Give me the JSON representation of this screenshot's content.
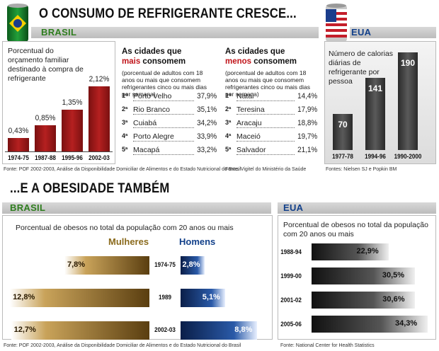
{
  "top": {
    "headline": "O CONSUMO DE REFRIGERANTE CRESCE...",
    "brasil_label": "BRASIL",
    "eua_label": "EUA",
    "brasil_chart": {
      "desc": "Porcentual do orçamento familiar destinado à compra de refrigerante",
      "categories": [
        "1974-75",
        "1987-88",
        "1995-96",
        "2002-03"
      ],
      "values": [
        0.43,
        0.85,
        1.35,
        2.12
      ],
      "labels": [
        "0,43%",
        "0,85%",
        "1,35%",
        "2,12%"
      ],
      "color": "#9c1818"
    },
    "more_cities": {
      "title_line1": "As cidades que",
      "title_em": "mais",
      "title_rest": "consomem",
      "sub": "(porcentual de adultos com 18 anos ou mais que consomem refrigerantes cinco ou mais dias por semana)",
      "rows": [
        {
          "rank": "1ª",
          "city": "Porto Velho",
          "value": "37,9%"
        },
        {
          "rank": "2ª",
          "city": "Rio Branco",
          "value": "35,1%"
        },
        {
          "rank": "3ª",
          "city": "Cuiabá",
          "value": "34,2%"
        },
        {
          "rank": "4ª",
          "city": "Porto Alegre",
          "value": "33,9%"
        },
        {
          "rank": "5ª",
          "city": "Macapá",
          "value": "33,2%"
        }
      ]
    },
    "less_cities": {
      "title_line1": "As cidades que",
      "title_em": "menos",
      "title_rest": "consomem",
      "sub": "(porcentual de adultos com 18 anos ou mais que consomem refrigerantes cinco ou mais dias por semana)",
      "rows": [
        {
          "rank": "1ª",
          "city": "Natal",
          "value": "14,4%"
        },
        {
          "rank": "2ª",
          "city": "Teresina",
          "value": "17,9%"
        },
        {
          "rank": "3ª",
          "city": "Aracaju",
          "value": "18,8%"
        },
        {
          "rank": "4ª",
          "city": "Maceió",
          "value": "19,7%"
        },
        {
          "rank": "5ª",
          "city": "Salvador",
          "value": "21,1%"
        }
      ]
    },
    "eua_chart": {
      "desc": "Número de calorias diárias de refrigerante por pessoa",
      "categories": [
        "1977-78",
        "1994-96",
        "1990-2000"
      ],
      "values": [
        70,
        141,
        190
      ],
      "labels": [
        "70",
        "141",
        "190"
      ]
    },
    "source_brasil": "Fonte: POF 2002-2003, Análise da Disponibilidade Domiciliar de Alimentos e do Estado Nutricional do Brasil",
    "source_vigitel": "Fonte: Vigitel do Ministério da Saúde",
    "source_eua": "Fontes: Nielsen SJ e Popkin BM"
  },
  "bottom": {
    "headline": "...E A OBESIDADE TAMBÉM",
    "brasil_label": "BRASIL",
    "eua_label": "EUA",
    "brasil_chart": {
      "desc": "Porcentual de obesos no total da população com 20 anos ou mais",
      "women_label": "Mulheres",
      "men_label": "Homens",
      "categories": [
        "1974-75",
        "1989",
        "2002-03"
      ],
      "women": [
        7.8,
        12.8,
        12.7
      ],
      "men": [
        2.8,
        5.1,
        8.8
      ],
      "women_labels": [
        "7,8%",
        "12,8%",
        "12,7%"
      ],
      "men_labels": [
        "2,8%",
        "5,1%",
        "8,8%"
      ]
    },
    "eua_chart": {
      "desc": "Porcentual de obesos no total da população com 20 anos ou mais",
      "categories": [
        "1988-94",
        "1999-00",
        "2001-02",
        "2005-06"
      ],
      "values": [
        22.9,
        30.5,
        30.6,
        34.3
      ],
      "labels": [
        "22,9%",
        "30,5%",
        "30,6%",
        "34,3%"
      ]
    },
    "source_brasil": "Fonte: POF 2002-2003, Análise da Disponibilidade Domiciliar de Alimentos e do Estado Nutricional do Brasil",
    "source_eua": "Fonte: National Center for Health Statistics"
  },
  "chart_data": [
    {
      "type": "bar",
      "title": "",
      "categories": [
        "1974-75",
        "1987-88",
        "1995-96",
        "2002-03"
      ],
      "values": [
        0.43,
        0.85,
        1.35,
        2.12
      ],
      "ylabel": "Porcentual do orçamento familiar destinado à compra de refrigerante"
    },
    {
      "type": "bar",
      "categories": [
        "1977-78",
        "1994-96",
        "1990-2000"
      ],
      "values": [
        70,
        141,
        190
      ],
      "ylabel": "Número de calorias diárias de refrigerante por pessoa"
    },
    {
      "type": "bar",
      "categories": [
        "1974-75",
        "1989",
        "2002-03"
      ],
      "series": [
        {
          "name": "Mulheres",
          "values": [
            7.8,
            12.8,
            12.7
          ]
        },
        {
          "name": "Homens",
          "values": [
            2.8,
            5.1,
            8.8
          ]
        }
      ],
      "ylabel": "Porcentual de obesos no total da população com 20 anos ou mais"
    },
    {
      "type": "bar",
      "categories": [
        "1988-94",
        "1999-00",
        "2001-02",
        "2005-06"
      ],
      "values": [
        22.9,
        30.5,
        30.6,
        34.3
      ],
      "ylabel": "Porcentual de obesos no total da população com 20 anos ou mais"
    }
  ]
}
